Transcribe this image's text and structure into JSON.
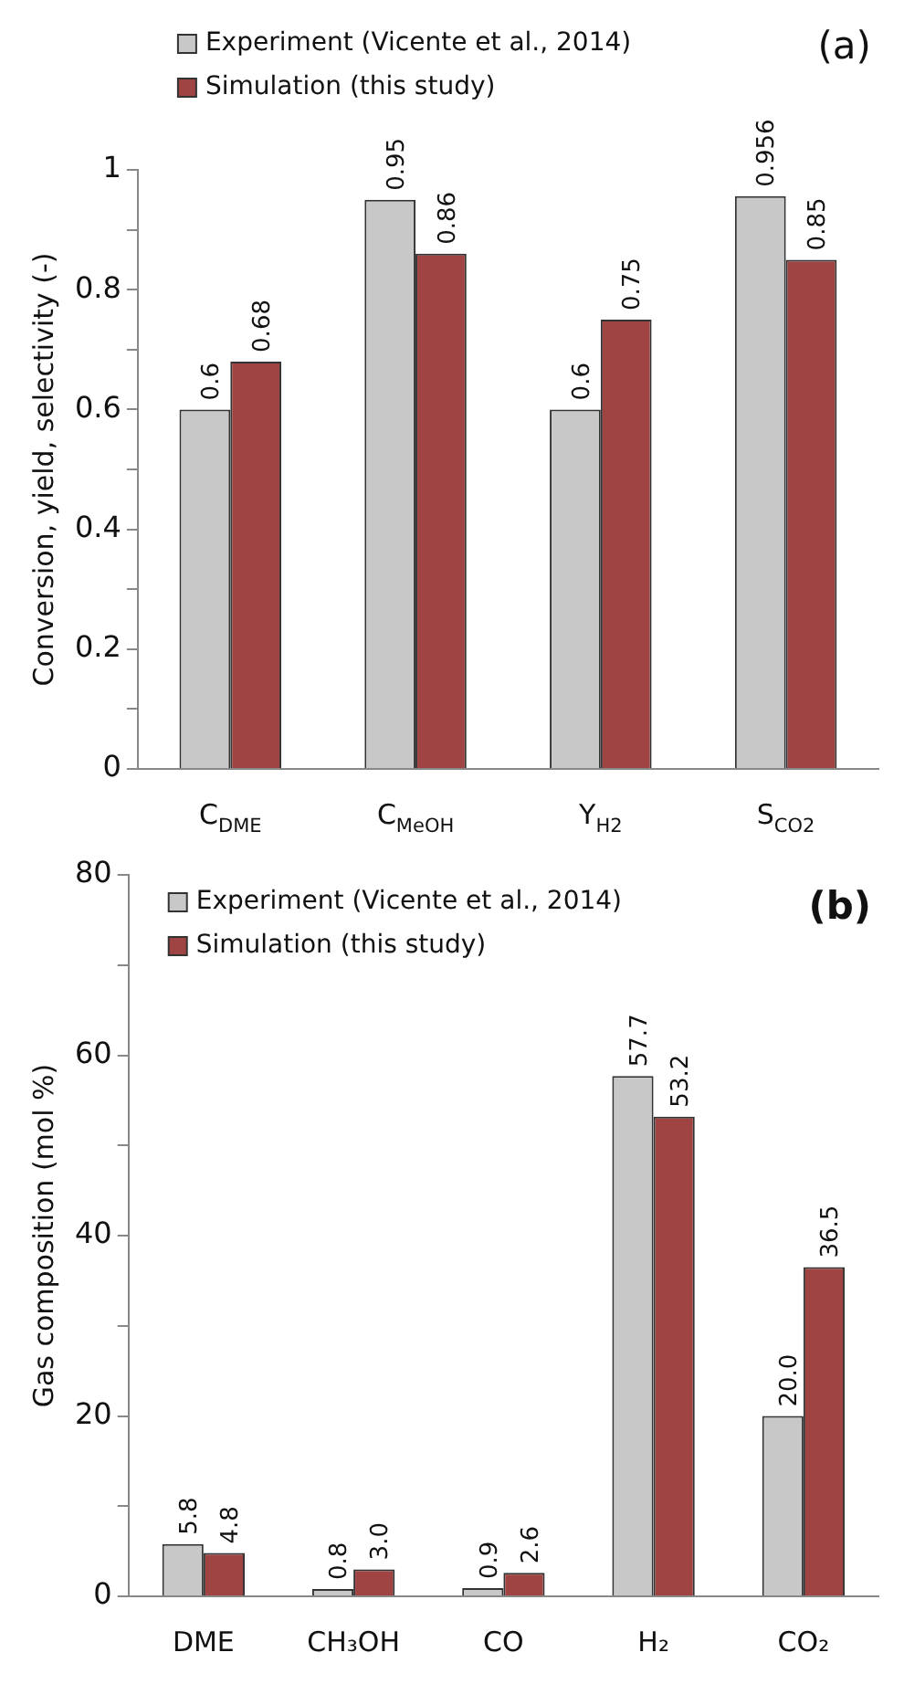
{
  "chart_data": [
    {
      "type": "bar",
      "title": "(a)",
      "ylabel": "Conversion, yield, selectivity (-)",
      "categories": [
        "C$_{DME}$",
        "C$_{MeOH}$",
        "Y$_{H2}$",
        "S$_{CO2}$"
      ],
      "series": [
        {
          "name": "Experiment (Vicente et al., 2014)",
          "color": "#c8c8c8",
          "values": [
            0.6,
            0.95,
            0.6,
            0.956
          ]
        },
        {
          "name": "Simulation (this study)",
          "color": "#a04343",
          "values": [
            0.68,
            0.86,
            0.75,
            0.85
          ]
        }
      ],
      "ylim": [
        0,
        1
      ],
      "yticks": [
        0,
        {
          "value": 0.1,
          "label": null
        },
        {
          "value": 0.2,
          "label": "0.2"
        },
        {
          "value": 0.3,
          "label": null
        },
        {
          "value": 0.4,
          "label": "0.4"
        },
        {
          "value": 0.5,
          "label": null
        },
        {
          "value": 0.6,
          "label": "0.6"
        },
        {
          "value": 0.7,
          "label": null
        },
        {
          "value": 0.8,
          "label": "0.8"
        },
        {
          "value": 0.9,
          "label": null
        },
        1
      ],
      "grid": false,
      "legend": "top left",
      "data_labels": true
    },
    {
      "type": "bar",
      "title": "(b)",
      "ylabel": "Gas composition (mol %)",
      "categories": [
        "DME",
        "CH₃OH",
        "CO",
        "H₂",
        "CO₂"
      ],
      "series": [
        {
          "name": "Experiment (Vicente et al., 2014)",
          "color": "#c8c8c8",
          "values": [
            5.8,
            0.8,
            0.9,
            57.7,
            20.0
          ],
          "value_labels": [
            "5.8",
            "0.8",
            "0.9",
            "57.7",
            "20.0"
          ]
        },
        {
          "name": "Simulation (this study)",
          "color": "#a04343",
          "values": [
            4.8,
            3.0,
            2.6,
            53.2,
            36.5
          ],
          "value_labels": [
            "4.8",
            "3.0",
            "2.6",
            "53.2",
            "36.5"
          ]
        }
      ],
      "ylim": [
        0,
        80
      ],
      "yticks": [
        0,
        {
          "value": 10,
          "label": null
        },
        20,
        {
          "value": 30,
          "label": null
        },
        40,
        {
          "value": 50,
          "label": null
        },
        60,
        {
          "value": 70,
          "label": null
        },
        80
      ],
      "grid": false,
      "legend": "top left"
    }
  ]
}
